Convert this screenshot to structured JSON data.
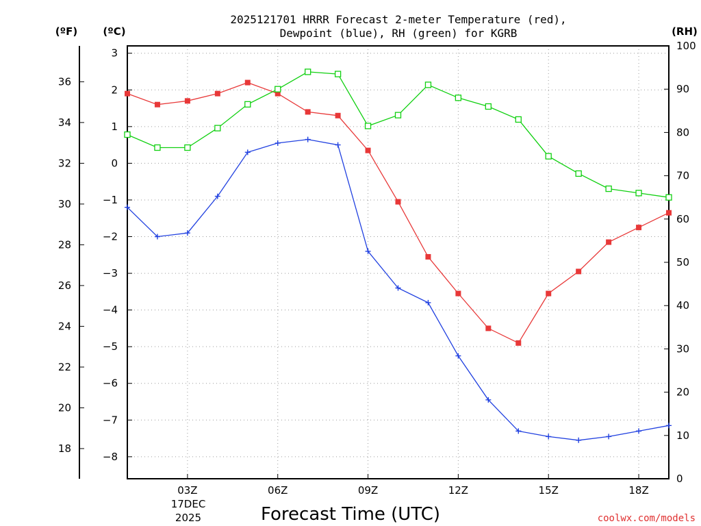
{
  "chart_data": {
    "type": "line",
    "title_line1": "2025121701 HRRR Forecast 2-meter Temperature (red),",
    "title_line2": "Dewpoint (blue), RH (green) for KGRB",
    "xlabel": "Forecast Time (UTC)",
    "date_line1": "17DEC",
    "date_line2": "2025",
    "credit": "coolwx.com/models",
    "left_outer_unit": "(ºF)",
    "left_unit": "(ºC)",
    "right_unit": "(RH)",
    "x_hours": [
      1,
      2,
      3,
      4,
      5,
      6,
      7,
      8,
      9,
      10,
      11,
      12,
      13,
      14,
      15,
      16,
      17,
      18,
      19
    ],
    "x_range": [
      1,
      19
    ],
    "x_ticks": [
      {
        "hour": 3,
        "label": "03Z"
      },
      {
        "hour": 6,
        "label": "06Z"
      },
      {
        "hour": 9,
        "label": "09Z"
      },
      {
        "hour": 12,
        "label": "12Z"
      },
      {
        "hour": 15,
        "label": "15Z"
      },
      {
        "hour": 18,
        "label": "18Z"
      }
    ],
    "y_celsius_range": [
      -8.6,
      3.2
    ],
    "y_celsius_ticks": [
      "3",
      "2",
      "1",
      "0",
      "−1",
      "−2",
      "−3",
      "−4",
      "−5",
      "−6",
      "−7",
      "−8"
    ],
    "y_celsius_tick_values": [
      3,
      2,
      1,
      0,
      -1,
      -2,
      -3,
      -4,
      -5,
      -6,
      -7,
      -8
    ],
    "y_fahrenheit_ticks": [
      "36",
      "34",
      "32",
      "30",
      "28",
      "26",
      "24",
      "22",
      "20",
      "18"
    ],
    "y_fahrenheit_tick_values": [
      36,
      34,
      32,
      30,
      28,
      26,
      24,
      22,
      20,
      18
    ],
    "y_rh_range": [
      0,
      100
    ],
    "y_rh_ticks": [
      "100",
      "90",
      "80",
      "70",
      "60",
      "50",
      "40",
      "30",
      "20",
      "10",
      "0"
    ],
    "y_rh_tick_values": [
      100,
      90,
      80,
      70,
      60,
      50,
      40,
      30,
      20,
      10,
      0
    ],
    "grid": true,
    "series": [
      {
        "name": "Temperature",
        "axis": "celsius",
        "color": "#e83838",
        "marker": "filled-square",
        "values": [
          1.9,
          1.6,
          1.7,
          1.9,
          2.2,
          1.9,
          1.4,
          1.3,
          0.35,
          -1.05,
          -2.55,
          -3.55,
          -4.5,
          -4.9,
          -3.55,
          -2.95,
          -2.15,
          -1.75,
          -1.35
        ]
      },
      {
        "name": "Dewpoint",
        "axis": "celsius",
        "color": "#2040e0",
        "marker": "plus",
        "values": [
          -1.2,
          -2.0,
          -1.9,
          -0.9,
          0.3,
          0.55,
          0.65,
          0.5,
          -2.4,
          -3.4,
          -3.8,
          -5.25,
          -6.45,
          -7.3,
          -7.45,
          -7.55,
          -7.45,
          -7.3,
          -7.15
        ]
      },
      {
        "name": "RH",
        "axis": "rh",
        "color": "#10d010",
        "marker": "open-square",
        "values": [
          79.5,
          76.5,
          76.5,
          81,
          86.5,
          90,
          94,
          93.5,
          81.5,
          84,
          91,
          88,
          86,
          83,
          74.5,
          70.5,
          67,
          66,
          65
        ]
      }
    ]
  }
}
